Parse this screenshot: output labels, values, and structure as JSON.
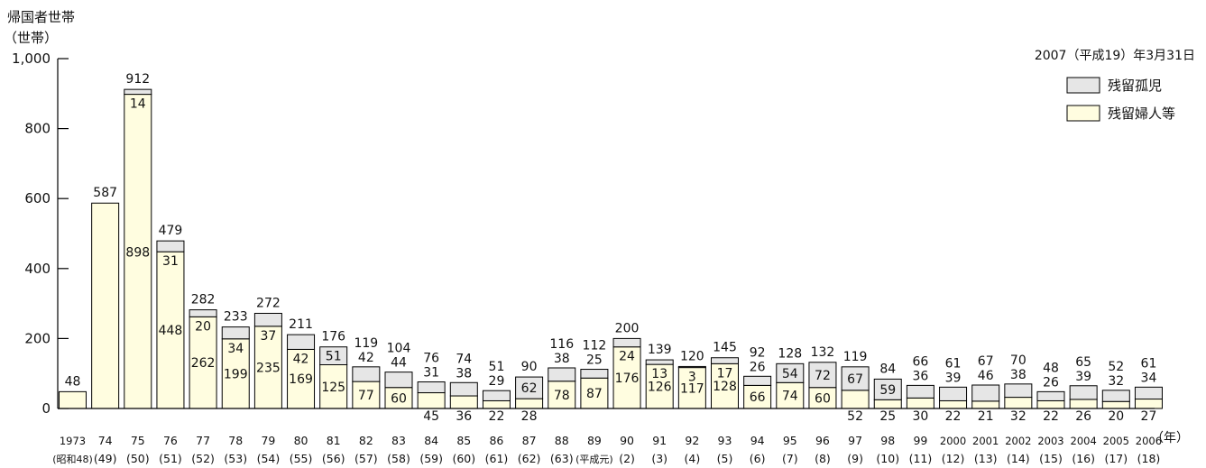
{
  "chart_data": {
    "type": "bar",
    "stacked": true,
    "title": "帰国者世帯",
    "ylabel_unit": "（世帯）",
    "date_note": "2007（平成19）年3月31日",
    "xlabel_unit": "（年）",
    "ylim": [
      0,
      1000
    ],
    "yticks": [
      "0",
      "200",
      "400",
      "600",
      "800",
      "1,000"
    ],
    "categories": [
      "1973",
      "74",
      "75",
      "76",
      "77",
      "78",
      "79",
      "80",
      "81",
      "82",
      "83",
      "84",
      "85",
      "86",
      "87",
      "88",
      "89",
      "90",
      "91",
      "92",
      "93",
      "94",
      "95",
      "96",
      "97",
      "98",
      "99",
      "2000",
      "2001",
      "2002",
      "2003",
      "2004",
      "2005",
      "2006"
    ],
    "subcategories": [
      "(昭和48)",
      "(49)",
      "(50)",
      "(51)",
      "(52)",
      "(53)",
      "(54)",
      "(55)",
      "(56)",
      "(57)",
      "(58)",
      "(59)",
      "(60)",
      "(61)",
      "(62)",
      "(63)",
      "(平成元)",
      "(2)",
      "(3)",
      "(4)",
      "(5)",
      "(6)",
      "(7)",
      "(8)",
      "(9)",
      "(10)",
      "(11)",
      "(12)",
      "(13)",
      "(14)",
      "(15)",
      "(16)",
      "(17)",
      "(18)"
    ],
    "series": [
      {
        "name": "残留婦人等",
        "color": "#fffde0",
        "values": [
          48,
          587,
          898,
          448,
          262,
          199,
          235,
          169,
          125,
          77,
          60,
          45,
          36,
          22,
          28,
          78,
          87,
          176,
          126,
          117,
          128,
          66,
          74,
          60,
          52,
          25,
          30,
          22,
          21,
          32,
          22,
          26,
          20,
          27
        ]
      },
      {
        "name": "残留孤児",
        "color": "#e6e6e6",
        "values": [
          0,
          0,
          14,
          31,
          20,
          34,
          37,
          42,
          51,
          42,
          44,
          31,
          38,
          29,
          62,
          38,
          25,
          24,
          13,
          3,
          17,
          26,
          54,
          72,
          67,
          59,
          36,
          39,
          46,
          38,
          26,
          39,
          32,
          34
        ]
      }
    ],
    "totals": [
      48,
      587,
      912,
      479,
      282,
      233,
      272,
      211,
      176,
      119,
      104,
      76,
      74,
      51,
      90,
      116,
      112,
      200,
      139,
      120,
      145,
      92,
      128,
      132,
      119,
      84,
      66,
      61,
      67,
      70,
      48,
      65,
      52,
      61
    ],
    "legend_position": "top-right"
  }
}
